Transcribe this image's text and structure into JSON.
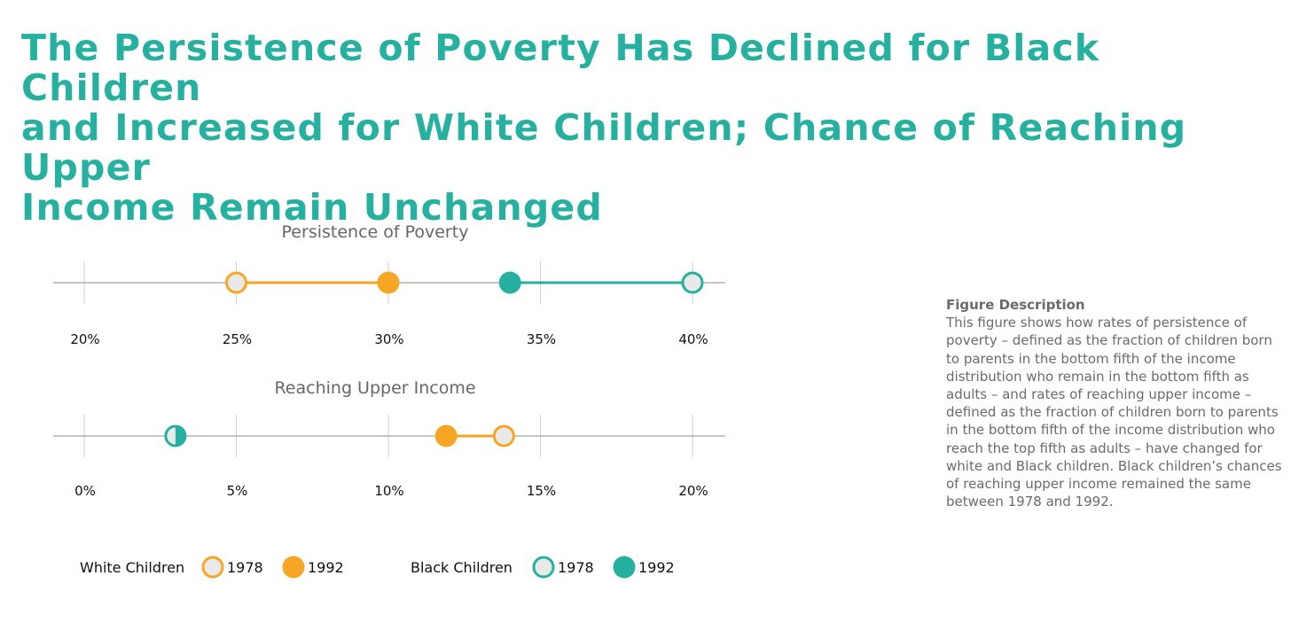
{
  "title_lines": [
    "The Persistence of Poverty Has Declined for Black Children",
    "and Increased for White Children; Chance of Reaching Upper",
    "Income Remain Unchanged"
  ],
  "colors": {
    "title": "#25b0a0",
    "white_children": "#f6a623",
    "black_children": "#25b0a0",
    "hollow_fill": "#e9e9ea",
    "axis": "#8c8c8c",
    "grid": "#cfcfcf"
  },
  "description": {
    "heading": "Figure  Description",
    "body": "This figure shows how rates of persistence of poverty – defined as the fraction of children born to parents in the bottom fifth of the income distribution who remain in the bottom fifth as adults – and rates of reaching upper income – defined as the fraction of children born to parents in the bottom fifth of the income distribution who reach the top fifth as adults – have changed for white and Black children. Black children’s chances of reaching upper income remained the same between 1978 and 1992."
  },
  "legend": {
    "groups": [
      {
        "label": "White Children",
        "series": "white",
        "items": [
          {
            "year": "1978",
            "style": "hollow"
          },
          {
            "year": "1992",
            "style": "filled"
          }
        ]
      },
      {
        "label": "Black Children",
        "series": "black",
        "items": [
          {
            "year": "1978",
            "style": "hollow"
          },
          {
            "year": "1992",
            "style": "filled"
          }
        ]
      }
    ]
  },
  "chart_data": [
    {
      "type": "dumbbell",
      "title": "Persistence of Poverty",
      "xlim": [
        20,
        40
      ],
      "ticks": [
        20,
        25,
        30,
        35,
        40
      ],
      "tick_labels": [
        "20%",
        "25%",
        "30%",
        "35%",
        "40%"
      ],
      "unit": "%",
      "series": [
        {
          "name": "White Children",
          "1978": 25,
          "1992": 30
        },
        {
          "name": "Black Children",
          "1978": 40,
          "1992": 34
        }
      ]
    },
    {
      "type": "dumbbell",
      "title": "Reaching Upper Income",
      "xlim": [
        0,
        20
      ],
      "ticks": [
        0,
        5,
        10,
        15,
        20
      ],
      "tick_labels": [
        "0%",
        "5%",
        "10%",
        "15%",
        "20%"
      ],
      "unit": "%",
      "series": [
        {
          "name": "White Children",
          "1978": 13.8,
          "1992": 11.9
        },
        {
          "name": "Black Children",
          "1978": 3,
          "1992": 3
        }
      ]
    }
  ]
}
